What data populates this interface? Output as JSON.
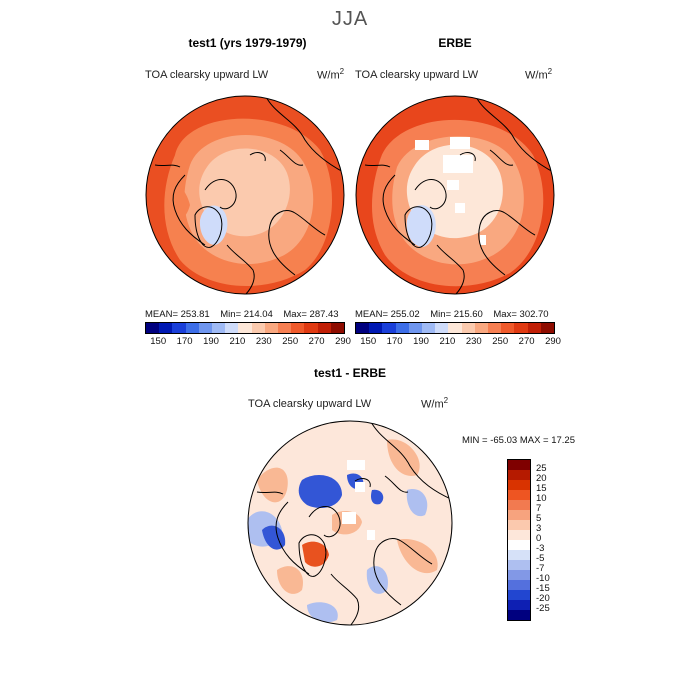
{
  "figure": {
    "season": "JJA",
    "variable": "TOA clearsky upward LW",
    "unit_base": "W/m",
    "unit_exp": "2"
  },
  "chart_data": [
    {
      "type": "heatmap",
      "projection": "north polar stereographic",
      "title": "test1 (yrs 1979-1979)",
      "subtitle": "TOA clearsky upward LW",
      "mean_label": "MEAN=",
      "mean": "253.81",
      "min_label": "Min=",
      "min": "214.04",
      "max_label": "Max=",
      "max": "287.43",
      "colorbar_ticks": [
        "150",
        "170",
        "190",
        "210",
        "230",
        "250",
        "270",
        "290"
      ],
      "colorbar_colors": [
        "#00007f",
        "#0019b3",
        "#1a3fd9",
        "#3d6ee8",
        "#6f96ef",
        "#9fbaf5",
        "#cfdcfa",
        "#fde7d8",
        "#fbcaae",
        "#f9a880",
        "#f67f52",
        "#ef5a2b",
        "#e03a12",
        "#c11f06",
        "#8e0c00"
      ]
    },
    {
      "type": "heatmap",
      "projection": "north polar stereographic",
      "title": "ERBE",
      "subtitle": "TOA clearsky upward LW",
      "mean_label": "MEAN=",
      "mean": "255.02",
      "min_label": "Min=",
      "min": "215.60",
      "max_label": "Max=",
      "max": "302.70",
      "colorbar_ticks": [
        "150",
        "170",
        "190",
        "210",
        "230",
        "250",
        "270",
        "290"
      ],
      "colorbar_colors": [
        "#00007f",
        "#0019b3",
        "#1a3fd9",
        "#3d6ee8",
        "#6f96ef",
        "#9fbaf5",
        "#cfdcfa",
        "#fde7d8",
        "#fbcaae",
        "#f9a880",
        "#f67f52",
        "#ef5a2b",
        "#e03a12",
        "#c11f06",
        "#8e0c00"
      ]
    },
    {
      "type": "heatmap",
      "projection": "north polar stereographic",
      "title": "test1 - ERBE",
      "subtitle": "TOA clearsky upward LW",
      "range_label": "MIN = -65.03 MAX =  17.25",
      "min": "-65.03",
      "max": "17.25",
      "legend_ticks": [
        "25",
        "20",
        "15",
        "10",
        "7",
        "5",
        "3",
        "0",
        "-3",
        "-5",
        "-7",
        "-10",
        "-15",
        "-20",
        "-25"
      ],
      "legend_colors": [
        "#7f0000",
        "#b51a00",
        "#d93300",
        "#ee5522",
        "#f27a50",
        "#f7a37e",
        "#fbc9ae",
        "#fde7da",
        "#ffffff",
        "#d6e1f8",
        "#aebff0",
        "#8298e6",
        "#5470dd",
        "#2246d0",
        "#0e1fb3",
        "#00007f"
      ]
    }
  ]
}
